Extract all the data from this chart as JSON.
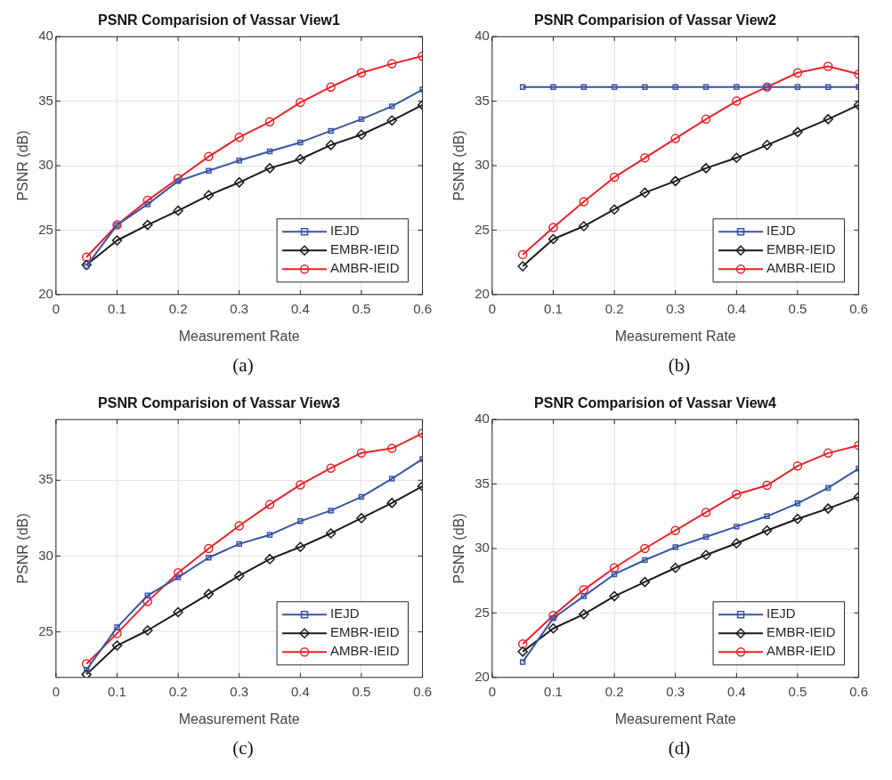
{
  "chart_data": [
    {
      "type": "line",
      "title": "PSNR Comparision of Vassar View1",
      "xlabel": "Measurement Rate",
      "ylabel": "PSNR (dB)",
      "annotations": [
        "(a)"
      ],
      "x": [
        0.05,
        0.1,
        0.15,
        0.2,
        0.25,
        0.3,
        0.35,
        0.4,
        0.45,
        0.5,
        0.55,
        0.6
      ],
      "xlim": [
        0,
        0.6
      ],
      "xticks": [
        0,
        0.1,
        0.2,
        0.3,
        0.4,
        0.5,
        0.6
      ],
      "ylim": [
        20,
        40
      ],
      "yticks": [
        20,
        25,
        30,
        35,
        40
      ],
      "grid": true,
      "legend": "bottom right",
      "series": [
        {
          "name": "IEJD",
          "color": "#3953a4",
          "marker": "square",
          "values": [
            22.2,
            25.4,
            27.0,
            28.8,
            29.6,
            30.4,
            31.1,
            31.8,
            32.7,
            33.6,
            34.6,
            35.9
          ]
        },
        {
          "name": "EMBR-IEID",
          "color": "#1a1a1a",
          "marker": "diamond",
          "values": [
            22.3,
            24.2,
            25.4,
            26.5,
            27.7,
            28.7,
            29.8,
            30.5,
            31.6,
            32.4,
            33.5,
            34.7
          ]
        },
        {
          "name": "AMBR-IEID",
          "color": "#e8222a",
          "marker": "circle",
          "values": [
            22.9,
            25.4,
            27.3,
            29.0,
            30.7,
            32.2,
            33.4,
            34.9,
            36.1,
            37.2,
            37.9,
            38.5
          ]
        }
      ]
    },
    {
      "type": "line",
      "title": "PSNR Comparision of Vassar View2",
      "xlabel": "Measurement Rate",
      "ylabel": "PSNR (dB)",
      "annotations": [
        "(b)"
      ],
      "x": [
        0.05,
        0.1,
        0.15,
        0.2,
        0.25,
        0.3,
        0.35,
        0.4,
        0.45,
        0.5,
        0.55,
        0.6
      ],
      "xlim": [
        0,
        0.6
      ],
      "xticks": [
        0,
        0.1,
        0.2,
        0.3,
        0.4,
        0.5,
        0.6
      ],
      "ylim": [
        20,
        40
      ],
      "yticks": [
        20,
        25,
        30,
        35,
        40
      ],
      "grid": true,
      "legend": "bottom right",
      "series": [
        {
          "name": "IEJD",
          "color": "#3953a4",
          "marker": "square",
          "values": [
            36.1,
            36.1,
            36.1,
            36.1,
            36.1,
            36.1,
            36.1,
            36.1,
            36.1,
            36.1,
            36.1,
            36.1
          ]
        },
        {
          "name": "EMBR-IEID",
          "color": "#1a1a1a",
          "marker": "diamond",
          "values": [
            22.2,
            24.3,
            25.3,
            26.6,
            27.9,
            28.8,
            29.8,
            30.6,
            31.6,
            32.6,
            33.6,
            34.7
          ]
        },
        {
          "name": "AMBR-IEID",
          "color": "#e8222a",
          "marker": "circle",
          "values": [
            23.1,
            25.2,
            27.2,
            29.1,
            30.6,
            32.1,
            33.6,
            35.0,
            36.1,
            37.2,
            37.7,
            37.1
          ]
        }
      ]
    },
    {
      "type": "line",
      "title": "PSNR Comparision of Vassar View3",
      "xlabel": "Measurement Rate",
      "ylabel": "PSNR (dB)",
      "annotations": [
        "(c)"
      ],
      "x": [
        0.05,
        0.1,
        0.15,
        0.2,
        0.25,
        0.3,
        0.35,
        0.4,
        0.45,
        0.5,
        0.55,
        0.6
      ],
      "xlim": [
        0,
        0.6
      ],
      "xticks": [
        0,
        0.1,
        0.2,
        0.3,
        0.4,
        0.5,
        0.6
      ],
      "ylim": [
        22,
        39
      ],
      "yticks": [
        25,
        30,
        35
      ],
      "grid": true,
      "legend": "bottom right",
      "series": [
        {
          "name": "IEJD",
          "color": "#3953a4",
          "marker": "square",
          "values": [
            22.5,
            25.3,
            27.4,
            28.6,
            29.9,
            30.8,
            31.4,
            32.3,
            33.0,
            33.9,
            35.1,
            36.4
          ]
        },
        {
          "name": "EMBR-IEID",
          "color": "#1a1a1a",
          "marker": "diamond",
          "values": [
            22.2,
            24.1,
            25.1,
            26.3,
            27.5,
            28.7,
            29.8,
            30.6,
            31.5,
            32.5,
            33.5,
            34.6
          ]
        },
        {
          "name": "AMBR-IEID",
          "color": "#e8222a",
          "marker": "circle",
          "values": [
            22.9,
            24.9,
            27.0,
            28.9,
            30.5,
            32.0,
            33.4,
            34.7,
            35.8,
            36.8,
            37.1,
            38.1
          ]
        }
      ]
    },
    {
      "type": "line",
      "title": "PSNR Comparision of Vassar View4",
      "xlabel": "Measurement Rate",
      "ylabel": "PSNR (dB)",
      "annotations": [
        "(d)"
      ],
      "x": [
        0.05,
        0.1,
        0.15,
        0.2,
        0.25,
        0.3,
        0.35,
        0.4,
        0.45,
        0.5,
        0.55,
        0.6
      ],
      "xlim": [
        0,
        0.6
      ],
      "xticks": [
        0,
        0.1,
        0.2,
        0.3,
        0.4,
        0.5,
        0.6
      ],
      "ylim": [
        20,
        40
      ],
      "yticks": [
        20,
        25,
        30,
        35,
        40
      ],
      "grid": true,
      "legend": "bottom right",
      "series": [
        {
          "name": "IEJD",
          "color": "#3953a4",
          "marker": "square",
          "values": [
            21.2,
            24.6,
            26.3,
            28.0,
            29.1,
            30.1,
            30.9,
            31.7,
            32.5,
            33.5,
            34.7,
            36.2
          ]
        },
        {
          "name": "EMBR-IEID",
          "color": "#1a1a1a",
          "marker": "diamond",
          "values": [
            22.0,
            23.8,
            24.9,
            26.3,
            27.4,
            28.5,
            29.5,
            30.4,
            31.4,
            32.3,
            33.1,
            34.0
          ]
        },
        {
          "name": "AMBR-IEID",
          "color": "#e8222a",
          "marker": "circle",
          "values": [
            22.6,
            24.8,
            26.8,
            28.5,
            30.0,
            31.4,
            32.8,
            34.2,
            34.9,
            36.4,
            37.4,
            38.0
          ]
        }
      ]
    }
  ]
}
